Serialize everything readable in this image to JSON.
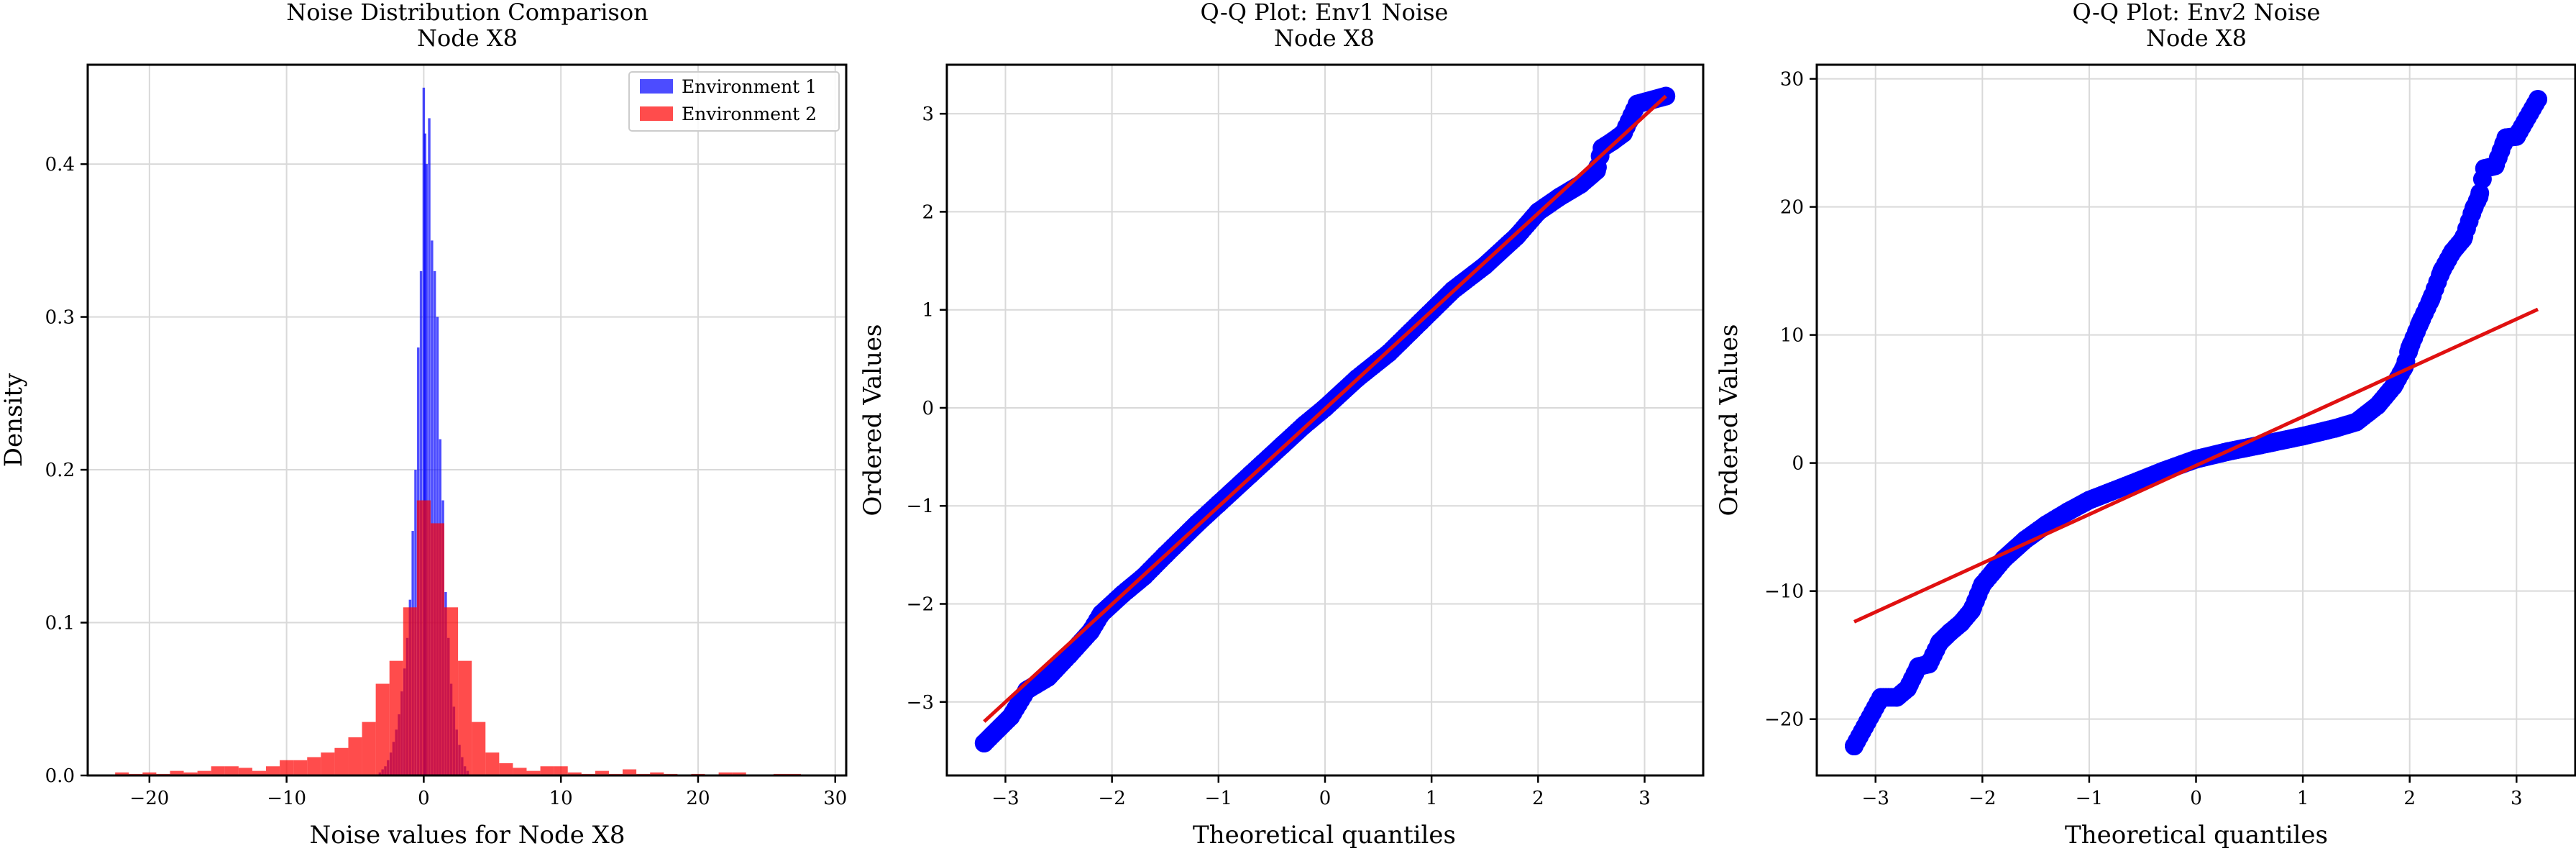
{
  "chart_data": [
    {
      "type": "histogram",
      "title": "Noise Distribution Comparison",
      "subtitle": "Node X8",
      "xlabel": "Noise values for Node X8",
      "ylabel": "Density",
      "xlim": [
        -24.5,
        30.8
      ],
      "ylim": [
        0,
        0.465
      ],
      "xticks": [
        -20,
        -10,
        0,
        10,
        20,
        30
      ],
      "yticks": [
        0.0,
        0.1,
        0.2,
        0.3,
        0.4
      ],
      "grid": true,
      "legend_position": "top-right",
      "series": [
        {
          "name": "Environment 1",
          "color": "#0000ff",
          "opacity": 0.7,
          "bin_width": 0.18,
          "bins": [
            [
              -3.2,
              0.002
            ],
            [
              -3.0,
              0.004
            ],
            [
              -2.8,
              0.006
            ],
            [
              -2.6,
              0.01
            ],
            [
              -2.4,
              0.015
            ],
            [
              -2.2,
              0.022
            ],
            [
              -2.0,
              0.03
            ],
            [
              -1.8,
              0.04
            ],
            [
              -1.6,
              0.055
            ],
            [
              -1.4,
              0.07
            ],
            [
              -1.2,
              0.09
            ],
            [
              -1.0,
              0.115
            ],
            [
              -0.8,
              0.16
            ],
            [
              -0.6,
              0.2
            ],
            [
              -0.4,
              0.28
            ],
            [
              -0.2,
              0.33
            ],
            [
              0.0,
              0.45
            ],
            [
              0.1,
              0.42
            ],
            [
              0.2,
              0.4
            ],
            [
              0.4,
              0.43
            ],
            [
              0.6,
              0.35
            ],
            [
              0.8,
              0.33
            ],
            [
              1.0,
              0.3
            ],
            [
              1.2,
              0.22
            ],
            [
              1.4,
              0.18
            ],
            [
              1.6,
              0.12
            ],
            [
              1.8,
              0.09
            ],
            [
              2.0,
              0.06
            ],
            [
              2.2,
              0.045
            ],
            [
              2.4,
              0.03
            ],
            [
              2.6,
              0.02
            ],
            [
              2.8,
              0.012
            ],
            [
              3.0,
              0.006
            ],
            [
              3.2,
              0.003
            ]
          ]
        },
        {
          "name": "Environment 2",
          "color": "#ff0000",
          "opacity": 0.7,
          "bin_width": 1.0,
          "bins": [
            [
              -22,
              0.002
            ],
            [
              -21,
              0.001
            ],
            [
              -20,
              0.002
            ],
            [
              -19,
              0.001
            ],
            [
              -18,
              0.003
            ],
            [
              -17,
              0.002
            ],
            [
              -16,
              0.003
            ],
            [
              -15,
              0.006
            ],
            [
              -14,
              0.006
            ],
            [
              -13,
              0.005
            ],
            [
              -12,
              0.003
            ],
            [
              -11,
              0.006
            ],
            [
              -10,
              0.01
            ],
            [
              -9,
              0.01
            ],
            [
              -8,
              0.012
            ],
            [
              -7,
              0.015
            ],
            [
              -6,
              0.018
            ],
            [
              -5,
              0.025
            ],
            [
              -4,
              0.035
            ],
            [
              -3,
              0.06
            ],
            [
              -2,
              0.075
            ],
            [
              -1,
              0.11
            ],
            [
              0,
              0.18
            ],
            [
              1,
              0.165
            ],
            [
              2,
              0.11
            ],
            [
              3,
              0.075
            ],
            [
              4,
              0.035
            ],
            [
              5,
              0.015
            ],
            [
              6,
              0.008
            ],
            [
              7,
              0.005
            ],
            [
              8,
              0.003
            ],
            [
              9,
              0.006
            ],
            [
              10,
              0.006
            ],
            [
              11,
              0.002
            ],
            [
              12,
              0.001
            ],
            [
              13,
              0.003
            ],
            [
              14,
              0.001
            ],
            [
              15,
              0.004
            ],
            [
              16,
              0.001
            ],
            [
              17,
              0.002
            ],
            [
              18,
              0.001
            ],
            [
              20,
              0.001
            ],
            [
              22,
              0.002
            ],
            [
              23,
              0.002
            ],
            [
              26,
              0.001
            ],
            [
              27,
              0.001
            ]
          ]
        }
      ]
    },
    {
      "type": "scatter",
      "title": "Q-Q Plot: Env1 Noise",
      "subtitle": "Node X8",
      "xlabel": "Theoretical quantiles",
      "ylabel": "Ordered Values",
      "xlim": [
        -3.55,
        3.55
      ],
      "ylim": [
        -3.75,
        3.5
      ],
      "xticks": [
        -3,
        -2,
        -1,
        0,
        1,
        2,
        3
      ],
      "yticks": [
        -3,
        -2,
        -1,
        0,
        1,
        2,
        3
      ],
      "grid": true,
      "point_color": "#0000ff",
      "line_color": "#e01010",
      "fit_line": {
        "x": [
          -3.2,
          3.2
        ],
        "y": [
          -3.2,
          3.18
        ]
      },
      "anchors": [
        [
          -3.2,
          -3.42
        ],
        [
          -2.95,
          -3.15
        ],
        [
          -2.8,
          -2.88
        ],
        [
          -2.6,
          -2.75
        ],
        [
          -2.4,
          -2.52
        ],
        [
          -2.2,
          -2.28
        ],
        [
          -2.1,
          -2.1
        ],
        [
          -1.9,
          -1.9
        ],
        [
          -1.7,
          -1.72
        ],
        [
          -1.5,
          -1.5
        ],
        [
          -1.2,
          -1.18
        ],
        [
          -1.0,
          -0.98
        ],
        [
          -0.7,
          -0.68
        ],
        [
          -0.4,
          -0.38
        ],
        [
          -0.2,
          -0.18
        ],
        [
          0.0,
          0.0
        ],
        [
          0.3,
          0.3
        ],
        [
          0.6,
          0.56
        ],
        [
          0.9,
          0.88
        ],
        [
          1.2,
          1.2
        ],
        [
          1.5,
          1.45
        ],
        [
          1.8,
          1.75
        ],
        [
          2.0,
          2.0
        ],
        [
          2.2,
          2.15
        ],
        [
          2.4,
          2.28
        ],
        [
          2.55,
          2.42
        ],
        [
          2.6,
          2.65
        ],
        [
          2.7,
          2.72
        ],
        [
          2.8,
          2.8
        ],
        [
          2.93,
          3.1
        ],
        [
          3.2,
          3.18
        ]
      ]
    },
    {
      "type": "scatter",
      "title": "Q-Q Plot: Env2 Noise",
      "subtitle": "Node X8",
      "xlabel": "Theoretical quantiles",
      "ylabel": "Ordered Values",
      "xlim": [
        -3.55,
        3.55
      ],
      "ylim": [
        -24.4,
        31.1
      ],
      "xticks": [
        -3,
        -2,
        -1,
        0,
        1,
        2,
        3
      ],
      "yticks": [
        -20,
        -10,
        0,
        10,
        20,
        30
      ],
      "grid": true,
      "point_color": "#0000ff",
      "line_color": "#e01010",
      "fit_line": {
        "x": [
          -3.2,
          3.2
        ],
        "y": [
          -12.4,
          12.0
        ]
      },
      "anchors": [
        [
          -3.2,
          -22.1
        ],
        [
          -2.95,
          -18.3
        ],
        [
          -2.8,
          -18.3
        ],
        [
          -2.7,
          -17.6
        ],
        [
          -2.6,
          -15.9
        ],
        [
          -2.5,
          -15.7
        ],
        [
          -2.4,
          -14
        ],
        [
          -2.3,
          -13.2
        ],
        [
          -2.2,
          -12.5
        ],
        [
          -2.1,
          -11.5
        ],
        [
          -2.0,
          -9.5
        ],
        [
          -1.9,
          -8.5
        ],
        [
          -1.8,
          -7.5
        ],
        [
          -1.6,
          -6
        ],
        [
          -1.4,
          -4.8
        ],
        [
          -1.2,
          -3.8
        ],
        [
          -1.0,
          -2.9
        ],
        [
          -0.6,
          -1.6
        ],
        [
          -0.3,
          -0.6
        ],
        [
          0.0,
          0.3
        ],
        [
          0.3,
          0.9
        ],
        [
          0.6,
          1.4
        ],
        [
          1.0,
          2.1
        ],
        [
          1.3,
          2.7
        ],
        [
          1.5,
          3.2
        ],
        [
          1.7,
          4.5
        ],
        [
          1.85,
          6.0
        ],
        [
          1.95,
          7.5
        ],
        [
          2.0,
          9.0
        ],
        [
          2.1,
          11.0
        ],
        [
          2.2,
          12.8
        ],
        [
          2.3,
          15.0
        ],
        [
          2.4,
          16.5
        ],
        [
          2.5,
          17.5
        ],
        [
          2.6,
          19.9
        ],
        [
          2.65,
          20.8
        ],
        [
          2.7,
          23.0
        ],
        [
          2.8,
          23.2
        ],
        [
          2.9,
          25.4
        ],
        [
          3.0,
          25.5
        ],
        [
          3.2,
          28.4
        ]
      ]
    }
  ],
  "legend": {
    "items": [
      {
        "label": "Environment 1",
        "color": "#0000ff"
      },
      {
        "label": "Environment 2",
        "color": "#ff0000"
      }
    ]
  }
}
